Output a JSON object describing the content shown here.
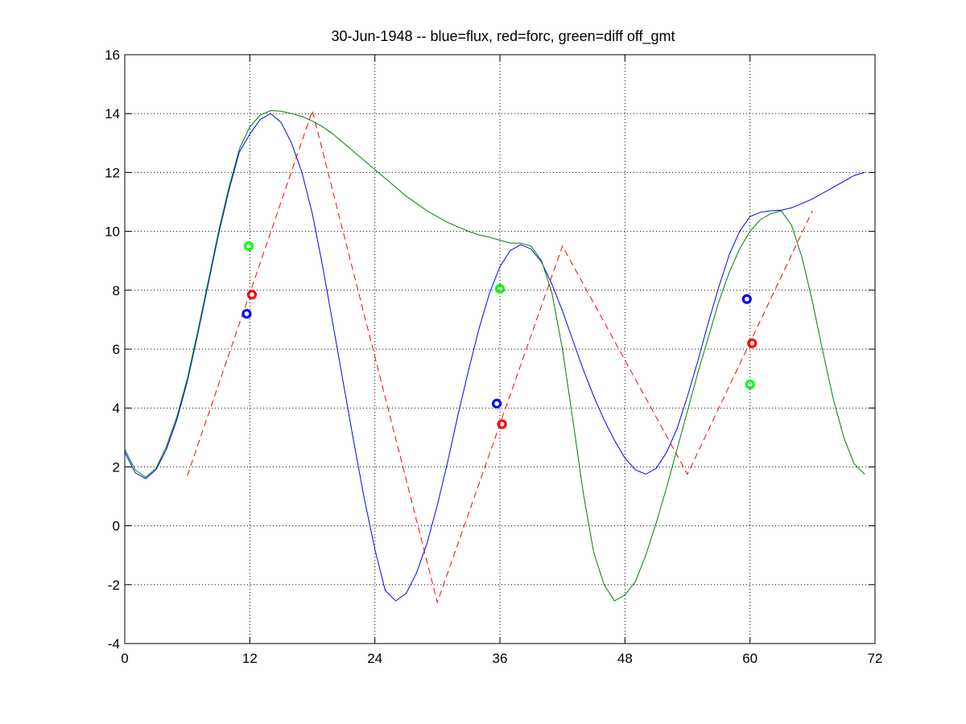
{
  "chart_data": {
    "type": "line",
    "title": "30-Jun-1948 -- blue=flux, red=forc, green=diff off_gmt",
    "xlabel": "",
    "ylabel": "",
    "xlim": [
      0,
      72
    ],
    "ylim": [
      -4,
      16
    ],
    "xticks": [
      0,
      12,
      24,
      36,
      48,
      60,
      72
    ],
    "yticks": [
      -4,
      -2,
      0,
      2,
      4,
      6,
      8,
      10,
      12,
      14,
      16
    ],
    "grid": true,
    "colors": {
      "blue": "#0000ff",
      "red": "#ff0000",
      "green": "#008000",
      "bright_green": "#00ff00"
    },
    "series": [
      {
        "color_key": "blue",
        "style": "solid",
        "points": [
          [
            0,
            2.5
          ],
          [
            1,
            1.8
          ],
          [
            2,
            1.6
          ],
          [
            3,
            1.9
          ],
          [
            4,
            2.6
          ],
          [
            5,
            3.6
          ],
          [
            6,
            4.9
          ],
          [
            7,
            6.5
          ],
          [
            8,
            8.2
          ],
          [
            9,
            9.9
          ],
          [
            10,
            11.4
          ],
          [
            11,
            12.7
          ],
          [
            12,
            13.3
          ],
          [
            13,
            13.8
          ],
          [
            14,
            14.0
          ],
          [
            15,
            13.7
          ],
          [
            16,
            13.0
          ],
          [
            17,
            12.0
          ],
          [
            18,
            10.6
          ],
          [
            19,
            8.8
          ],
          [
            20,
            6.8
          ],
          [
            21,
            4.8
          ],
          [
            22,
            2.8
          ],
          [
            23,
            0.9
          ],
          [
            24,
            -0.8
          ],
          [
            25,
            -2.2
          ],
          [
            26,
            -2.55
          ],
          [
            27,
            -2.3
          ],
          [
            28,
            -1.6
          ],
          [
            29,
            -0.6
          ],
          [
            30,
            0.7
          ],
          [
            31,
            2.2
          ],
          [
            32,
            3.8
          ],
          [
            33,
            5.3
          ],
          [
            34,
            6.7
          ],
          [
            35,
            7.9
          ],
          [
            36,
            8.8
          ],
          [
            37,
            9.35
          ],
          [
            38,
            9.55
          ],
          [
            39,
            9.4
          ],
          [
            40,
            8.95
          ],
          [
            41,
            8.2
          ],
          [
            42,
            7.3
          ],
          [
            43,
            6.3
          ],
          [
            44,
            5.3
          ],
          [
            45,
            4.4
          ],
          [
            46,
            3.6
          ],
          [
            47,
            2.9
          ],
          [
            48,
            2.3
          ],
          [
            49,
            1.9
          ],
          [
            50,
            1.75
          ],
          [
            51,
            1.95
          ],
          [
            52,
            2.5
          ],
          [
            53,
            3.3
          ],
          [
            54,
            4.4
          ],
          [
            55,
            5.6
          ],
          [
            56,
            6.9
          ],
          [
            57,
            8.1
          ],
          [
            58,
            9.2
          ],
          [
            59,
            10.0
          ],
          [
            60,
            10.5
          ],
          [
            61,
            10.65
          ],
          [
            62,
            10.7
          ],
          [
            63,
            10.72
          ],
          [
            64,
            10.8
          ],
          [
            65,
            10.95
          ],
          [
            66,
            11.1
          ],
          [
            67,
            11.3
          ],
          [
            68,
            11.5
          ],
          [
            69,
            11.7
          ],
          [
            70,
            11.9
          ],
          [
            71,
            12.0
          ]
        ]
      },
      {
        "color_key": "red",
        "style": "dashed",
        "points": [
          [
            6,
            1.7
          ],
          [
            18,
            14.1
          ],
          [
            30,
            -2.6
          ],
          [
            42,
            9.5
          ],
          [
            54,
            1.75
          ],
          [
            66,
            10.7
          ]
        ]
      },
      {
        "color_key": "green",
        "style": "solid",
        "points": [
          [
            0,
            2.6
          ],
          [
            1,
            1.9
          ],
          [
            2,
            1.65
          ],
          [
            3,
            1.95
          ],
          [
            4,
            2.7
          ],
          [
            5,
            3.7
          ],
          [
            6,
            5.0
          ],
          [
            7,
            6.6
          ],
          [
            8,
            8.3
          ],
          [
            9,
            10.0
          ],
          [
            10,
            11.5
          ],
          [
            11,
            12.8
          ],
          [
            12,
            13.55
          ],
          [
            13,
            13.95
          ],
          [
            14,
            14.1
          ],
          [
            15,
            14.08
          ],
          [
            16,
            14.0
          ],
          [
            17,
            13.9
          ],
          [
            18,
            13.75
          ],
          [
            19,
            13.55
          ],
          [
            20,
            13.3
          ],
          [
            21,
            13.0
          ],
          [
            22,
            12.7
          ],
          [
            23,
            12.4
          ],
          [
            24,
            12.1
          ],
          [
            25,
            11.8
          ],
          [
            26,
            11.5
          ],
          [
            27,
            11.2
          ],
          [
            28,
            10.95
          ],
          [
            29,
            10.7
          ],
          [
            30,
            10.5
          ],
          [
            31,
            10.3
          ],
          [
            32,
            10.15
          ],
          [
            33,
            10.0
          ],
          [
            34,
            9.88
          ],
          [
            35,
            9.8
          ],
          [
            36,
            9.7
          ],
          [
            37,
            9.6
          ],
          [
            38,
            9.6
          ],
          [
            39,
            9.5
          ],
          [
            40,
            9.0
          ],
          [
            41,
            7.9
          ],
          [
            42,
            6.0
          ],
          [
            43,
            3.6
          ],
          [
            44,
            1.1
          ],
          [
            45,
            -0.9
          ],
          [
            46,
            -2.0
          ],
          [
            47,
            -2.55
          ],
          [
            48,
            -2.35
          ],
          [
            49,
            -1.9
          ],
          [
            50,
            -1.0
          ],
          [
            51,
            0.1
          ],
          [
            52,
            1.3
          ],
          [
            53,
            2.6
          ],
          [
            54,
            3.9
          ],
          [
            55,
            5.2
          ],
          [
            56,
            6.4
          ],
          [
            57,
            7.6
          ],
          [
            58,
            8.6
          ],
          [
            59,
            9.4
          ],
          [
            60,
            10.0
          ],
          [
            61,
            10.4
          ],
          [
            62,
            10.6
          ],
          [
            63,
            10.7
          ],
          [
            64,
            10.2
          ],
          [
            65,
            9.1
          ],
          [
            66,
            7.6
          ],
          [
            67,
            5.9
          ],
          [
            68,
            4.3
          ],
          [
            69,
            3.0
          ],
          [
            70,
            2.1
          ],
          [
            71,
            1.75
          ]
        ]
      }
    ],
    "markers": [
      {
        "color_key": "blue",
        "x": 11.7,
        "y": 7.2
      },
      {
        "color_key": "red",
        "x": 12.2,
        "y": 7.85
      },
      {
        "color_key": "bright_green",
        "x": 11.9,
        "y": 9.5
      },
      {
        "color_key": "blue",
        "x": 35.7,
        "y": 4.15
      },
      {
        "color_key": "red",
        "x": 36.2,
        "y": 3.45
      },
      {
        "color_key": "bright_green",
        "x": 36.0,
        "y": 8.05
      },
      {
        "color_key": "blue",
        "x": 59.7,
        "y": 7.7
      },
      {
        "color_key": "red",
        "x": 60.2,
        "y": 6.2
      },
      {
        "color_key": "bright_green",
        "x": 60.0,
        "y": 4.8
      }
    ]
  }
}
